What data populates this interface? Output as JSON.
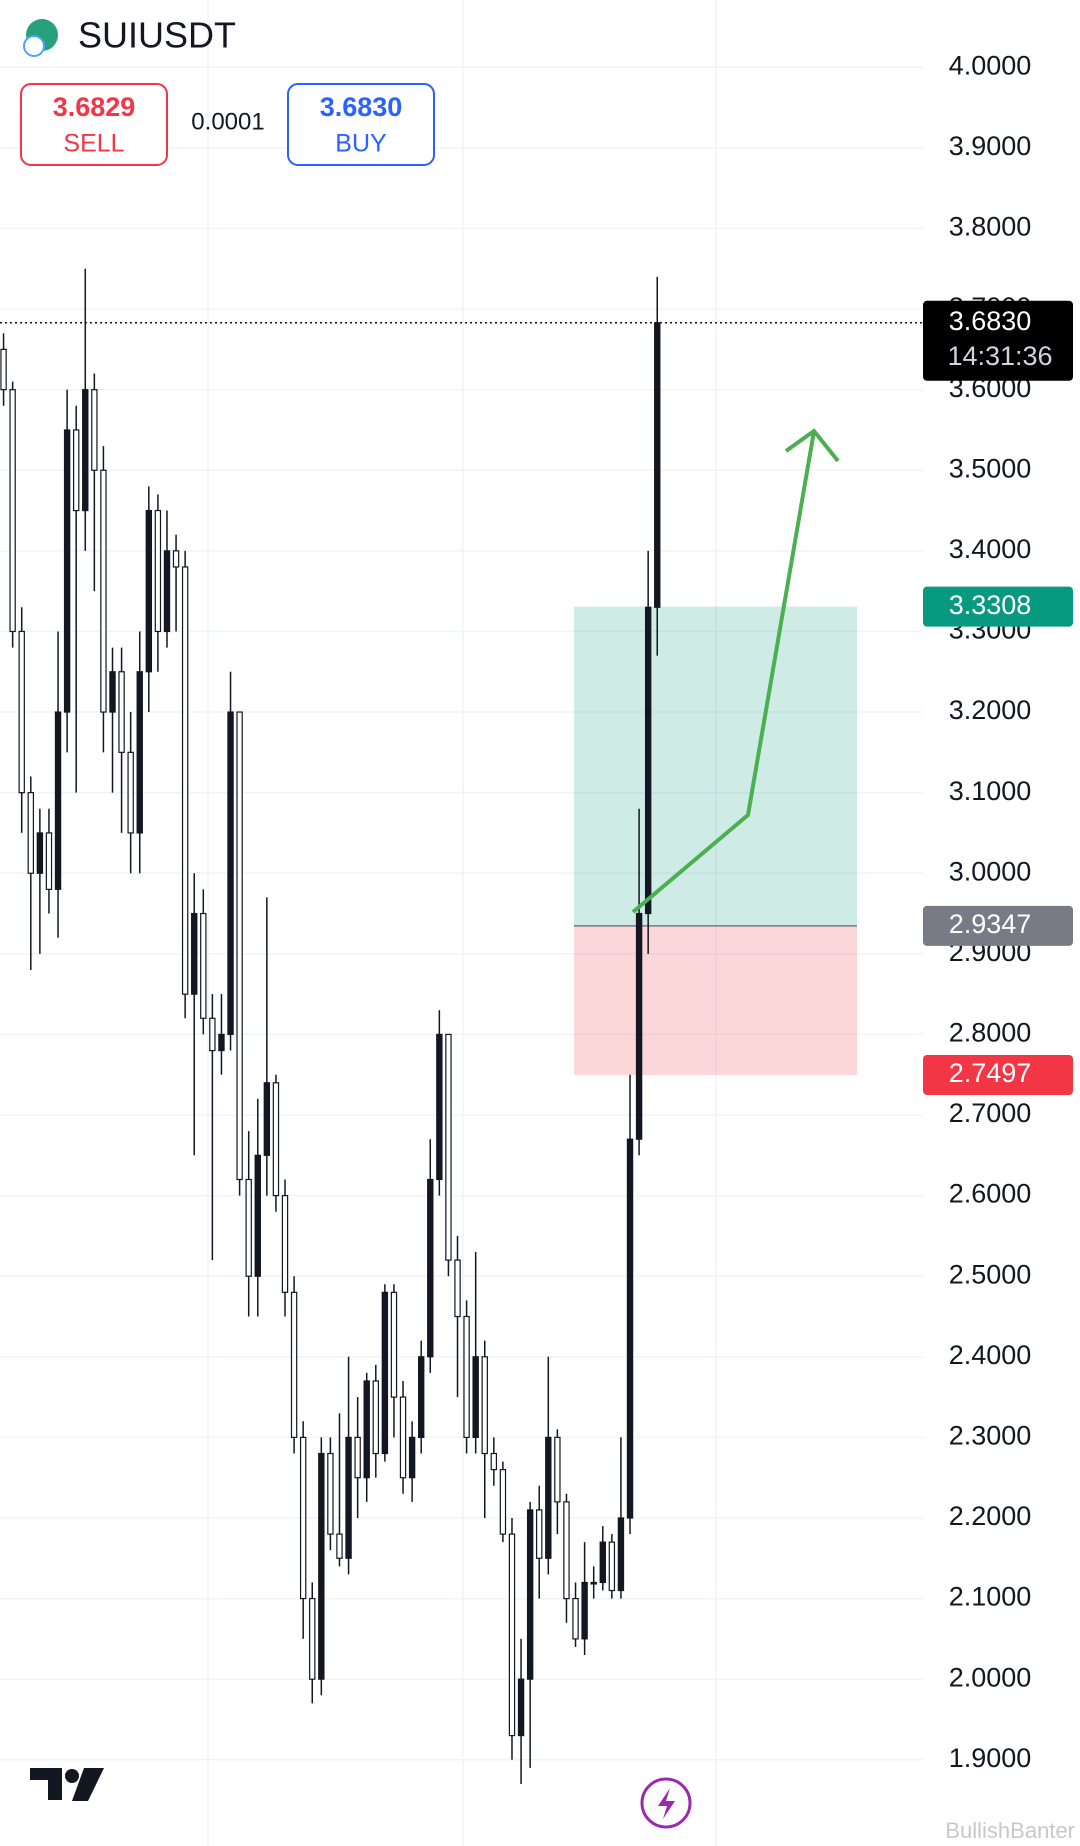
{
  "header": {
    "symbol": "SUIUSDT",
    "sell_price": "3.6829",
    "sell_label": "SELL",
    "spread": "0.0001",
    "buy_price": "3.6830",
    "buy_label": "BUY",
    "watermark": "BullishBanter"
  },
  "chart_data": {
    "type": "candlestick",
    "open": [
      3.65,
      3.6,
      3.3,
      3.1,
      3.0,
      3.05,
      2.98,
      3.2,
      3.55,
      3.45,
      3.6,
      3.5,
      3.2,
      3.25,
      3.15,
      3.05,
      3.25,
      3.45,
      3.3,
      3.4,
      3.38,
      2.85,
      2.95,
      2.82,
      2.78,
      2.8,
      3.2,
      2.62,
      2.5,
      2.65,
      2.74,
      2.6,
      2.48,
      2.3,
      2.1,
      2.0,
      2.28,
      2.18,
      2.15,
      2.3,
      2.25,
      2.37,
      2.28,
      2.48,
      2.35,
      2.25,
      2.3,
      2.4,
      2.62,
      2.8,
      2.52,
      2.45,
      2.3,
      2.4,
      2.28,
      2.26,
      2.18,
      1.93,
      2.0,
      2.21,
      2.15,
      2.3,
      2.22,
      2.1,
      2.05,
      2.12,
      2.12,
      2.17,
      2.11,
      2.2,
      2.67,
      2.95,
      3.33
    ],
    "high": [
      3.67,
      3.61,
      3.33,
      3.12,
      3.08,
      3.08,
      3.3,
      3.6,
      3.58,
      3.75,
      3.62,
      3.53,
      3.28,
      3.28,
      3.2,
      3.3,
      3.48,
      3.47,
      3.45,
      3.42,
      3.4,
      3.0,
      2.98,
      2.85,
      2.85,
      3.25,
      3.2,
      2.68,
      2.72,
      2.97,
      2.75,
      2.62,
      2.5,
      2.32,
      2.12,
      2.3,
      2.3,
      2.33,
      2.4,
      2.35,
      2.38,
      2.39,
      2.49,
      2.49,
      2.37,
      2.32,
      2.42,
      2.67,
      2.83,
      2.8,
      2.55,
      2.47,
      2.53,
      2.42,
      2.3,
      2.27,
      2.2,
      2.05,
      2.22,
      2.24,
      2.4,
      2.31,
      2.23,
      2.12,
      2.17,
      2.14,
      2.19,
      2.18,
      2.3,
      2.75,
      3.08,
      3.4,
      3.74
    ],
    "low": [
      3.58,
      3.28,
      3.05,
      2.88,
      2.9,
      2.95,
      2.92,
      3.15,
      3.1,
      3.4,
      3.35,
      3.15,
      3.1,
      3.05,
      3.0,
      3.0,
      3.2,
      3.25,
      3.28,
      3.3,
      2.82,
      2.65,
      2.8,
      2.52,
      2.75,
      2.78,
      2.6,
      2.45,
      2.45,
      2.6,
      2.58,
      2.45,
      2.28,
      2.05,
      1.97,
      1.98,
      2.16,
      2.14,
      2.13,
      2.2,
      2.22,
      2.25,
      2.27,
      2.3,
      2.23,
      2.22,
      2.28,
      2.38,
      2.6,
      2.5,
      2.35,
      2.28,
      2.28,
      2.2,
      2.24,
      2.17,
      1.9,
      1.87,
      1.89,
      2.1,
      2.13,
      2.18,
      2.07,
      2.04,
      2.03,
      2.1,
      2.11,
      2.1,
      2.1,
      2.18,
      2.65,
      2.9,
      3.27
    ],
    "close": [
      3.6,
      3.3,
      3.1,
      3.0,
      3.05,
      2.98,
      3.2,
      3.55,
      3.45,
      3.6,
      3.5,
      3.2,
      3.25,
      3.15,
      3.05,
      3.25,
      3.45,
      3.3,
      3.4,
      3.38,
      2.85,
      2.95,
      2.82,
      2.78,
      2.8,
      3.2,
      2.62,
      2.5,
      2.65,
      2.74,
      2.6,
      2.48,
      2.3,
      2.1,
      2.0,
      2.28,
      2.18,
      2.15,
      2.3,
      2.25,
      2.37,
      2.28,
      2.48,
      2.35,
      2.25,
      2.3,
      2.4,
      2.62,
      2.8,
      2.52,
      2.45,
      2.3,
      2.4,
      2.28,
      2.26,
      2.18,
      1.93,
      2.0,
      2.21,
      2.15,
      2.3,
      2.22,
      2.1,
      2.05,
      2.12,
      2.12,
      2.17,
      2.11,
      2.2,
      2.67,
      2.95,
      3.33,
      3.683
    ],
    "ylim": [
      1.793,
      4.0835
    ],
    "yticks": [
      {
        "value": 4,
        "label": "4.0000"
      },
      {
        "value": 3.9,
        "label": "3.9000"
      },
      {
        "value": 3.8,
        "label": "3.8000"
      },
      {
        "value": 3.7,
        "label": "3.7000"
      },
      {
        "value": 3.6,
        "label": "3.6000"
      },
      {
        "value": 3.5,
        "label": "3.5000"
      },
      {
        "value": 3.4,
        "label": "3.4000"
      },
      {
        "value": 3.3,
        "label": "3.3000"
      },
      {
        "value": 3.2,
        "label": "3.2000"
      },
      {
        "value": 3.1,
        "label": "3.1000"
      },
      {
        "value": 3,
        "label": "3.0000"
      },
      {
        "value": 2.9,
        "label": "2.9000"
      },
      {
        "value": 2.8,
        "label": "2.8000"
      },
      {
        "value": 2.7,
        "label": "2.7000"
      },
      {
        "value": 2.6,
        "label": "2.6000"
      },
      {
        "value": 2.5,
        "label": "2.5000"
      },
      {
        "value": 2.4,
        "label": "2.4000"
      },
      {
        "value": 2.3,
        "label": "2.3000"
      },
      {
        "value": 2.2,
        "label": "2.2000"
      },
      {
        "value": 2.1,
        "label": "2.1000"
      },
      {
        "value": 2,
        "label": "2.0000"
      },
      {
        "value": 1.9,
        "label": "1.9000"
      }
    ],
    "grid": true,
    "last_price": {
      "value": 3.683,
      "label": "3.6830"
    },
    "countdown": "14:31:36",
    "take_profit": {
      "value": 3.3308,
      "label": "3.3308",
      "color": "#089981"
    },
    "entry": {
      "value": 2.9347,
      "label": "2.9347",
      "color": "#787b86"
    },
    "stop_loss": {
      "value": 2.7497,
      "label": "2.7497",
      "color": "#f23645"
    }
  }
}
